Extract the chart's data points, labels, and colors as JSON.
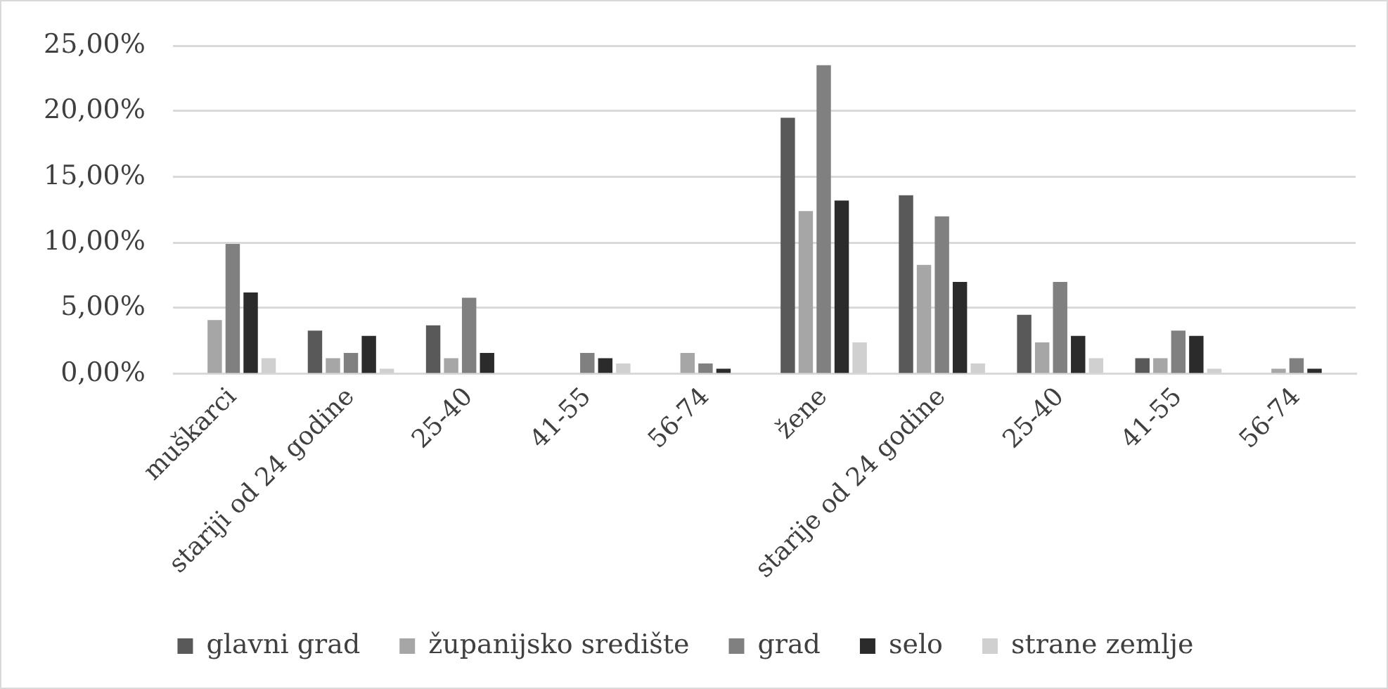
{
  "chart_data": {
    "type": "bar",
    "categories": [
      "muškarci",
      "stariji od 24 godine",
      "25-40",
      "41-55",
      "56-74",
      "žene",
      "starije od 24 godine",
      "25-40",
      "41-55",
      "56-74"
    ],
    "series": [
      {
        "name": "glavni grad",
        "color": "#595959",
        "values": [
          0,
          3.3,
          3.7,
          0,
          0,
          19.5,
          13.6,
          4.5,
          1.2,
          0
        ]
      },
      {
        "name": "županijsko središte",
        "color": "#a6a6a6",
        "values": [
          4.1,
          1.2,
          1.2,
          0,
          1.6,
          12.4,
          8.3,
          2.4,
          1.2,
          0.4
        ]
      },
      {
        "name": "grad",
        "color": "#808080",
        "values": [
          9.9,
          1.6,
          5.8,
          1.6,
          0.8,
          23.5,
          12.0,
          7.0,
          3.3,
          1.2
        ]
      },
      {
        "name": "selo",
        "color": "#2b2b2b",
        "values": [
          6.2,
          2.9,
          1.6,
          1.2,
          0.4,
          13.2,
          7.0,
          2.9,
          2.9,
          0.4
        ]
      },
      {
        "name": "strane zemlje",
        "color": "#d0d0d0",
        "values": [
          1.2,
          0.4,
          0,
          0.8,
          0,
          2.4,
          0.8,
          1.2,
          0.4,
          0
        ]
      }
    ],
    "ylim": [
      0,
      25
    ],
    "yticks": [
      {
        "value": 0,
        "label": "0,00%"
      },
      {
        "value": 5,
        "label": "5,00%"
      },
      {
        "value": 10,
        "label": "10,00%"
      },
      {
        "value": 15,
        "label": "15,00%"
      },
      {
        "value": 20,
        "label": "20,00%"
      },
      {
        "value": 25,
        "label": "25,00%"
      }
    ],
    "grid": "y",
    "legend": "bottom"
  }
}
